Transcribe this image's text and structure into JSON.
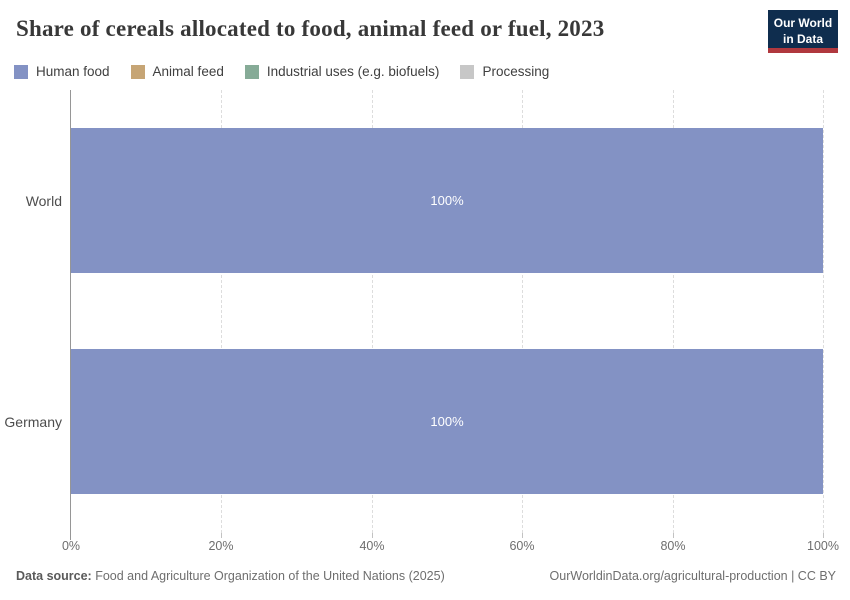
{
  "header": {
    "logo_line1": "Our World",
    "logo_line2": "in Data"
  },
  "colors": {
    "logo_navy": "#0f2d4e",
    "logo_red": "#b0383e",
    "human_food": "#8392c4",
    "animal_feed": "#c6a575",
    "industrial_uses": "#86ab97",
    "processing": "#c7c7c7"
  },
  "chart_data": {
    "type": "bar",
    "orientation": "horizontal",
    "stacked": true,
    "title": "Share of cereals allocated to food, animal feed or fuel, 2023",
    "categories": [
      "World",
      "Germany"
    ],
    "series": [
      {
        "name": "Human food",
        "values": [
          100,
          100
        ],
        "color": "#8392c4"
      },
      {
        "name": "Animal feed",
        "values": [
          0,
          0
        ],
        "color": "#c6a575"
      },
      {
        "name": "Industrial uses (e.g. biofuels)",
        "values": [
          0,
          0
        ],
        "color": "#86ab97"
      },
      {
        "name": "Processing",
        "values": [
          0,
          0
        ],
        "color": "#c7c7c7"
      }
    ],
    "bar_labels": [
      "100%",
      "100%"
    ],
    "xlabel": "",
    "ylabel": "",
    "xlim": [
      0,
      100
    ],
    "x_ticks": [
      "0%",
      "20%",
      "40%",
      "60%",
      "80%",
      "100%"
    ],
    "grid": "vertical-dashed",
    "legend_position": "top"
  },
  "footer": {
    "source_label": "Data source:",
    "source_value": "Food and Agriculture Organization of the United Nations (2025)",
    "credit": "OurWorldinData.org/agricultural-production | CC BY"
  }
}
